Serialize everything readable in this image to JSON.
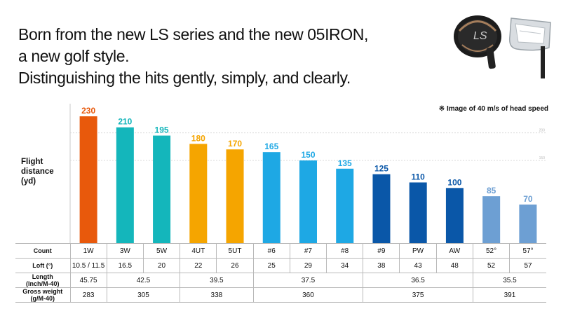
{
  "headline": {
    "lines": [
      "Born from the new LS series and the new 05IRON,",
      "a new golf style.",
      "Distinguishing the hits gently, simply, and clearly."
    ]
  },
  "note": "※ Image of 40 m/s of head speed",
  "product_icons": [
    "driver-head-icon",
    "iron-head-icon"
  ],
  "chart_data": {
    "type": "bar",
    "ylabel": [
      "Flight",
      "distance",
      "(yd)"
    ],
    "categories": [
      "1W",
      "3W",
      "5W",
      "4UT",
      "5UT",
      "#6",
      "#7",
      "#8",
      "#9",
      "PW",
      "AW",
      "52°",
      "57°"
    ],
    "values": [
      230,
      210,
      195,
      180,
      170,
      165,
      150,
      135,
      125,
      110,
      100,
      85,
      70
    ],
    "colors": [
      "#e8590c",
      "#14b6bb",
      "#14b6bb",
      "#f5a500",
      "#f5a500",
      "#1ea8e4",
      "#1ea8e4",
      "#1ea8e4",
      "#0a57a8",
      "#0a57a8",
      "#0a57a8",
      "#6d9fd3",
      "#6d9fd3"
    ],
    "gridlines": [
      200,
      150
    ],
    "gridline_labels": [
      "200",
      "150"
    ],
    "ylim": [
      0,
      250
    ]
  },
  "table": {
    "rows": [
      {
        "label": "Count",
        "cells": [
          {
            "text": "1W",
            "span": 1
          },
          {
            "text": "3W",
            "span": 1
          },
          {
            "text": "5W",
            "span": 1
          },
          {
            "text": "4UT",
            "span": 1
          },
          {
            "text": "5UT",
            "span": 1
          },
          {
            "text": "#6",
            "span": 1
          },
          {
            "text": "#7",
            "span": 1
          },
          {
            "text": "#8",
            "span": 1
          },
          {
            "text": "#9",
            "span": 1
          },
          {
            "text": "PW",
            "span": 1
          },
          {
            "text": "AW",
            "span": 1
          },
          {
            "text": "52°",
            "span": 1
          },
          {
            "text": "57°",
            "span": 1
          }
        ]
      },
      {
        "label": "Loft (°)",
        "cells": [
          {
            "text": "10.5 / 11.5",
            "span": 1
          },
          {
            "text": "16.5",
            "span": 1
          },
          {
            "text": "20",
            "span": 1
          },
          {
            "text": "22",
            "span": 1
          },
          {
            "text": "26",
            "span": 1
          },
          {
            "text": "25",
            "span": 1
          },
          {
            "text": "29",
            "span": 1
          },
          {
            "text": "34",
            "span": 1
          },
          {
            "text": "38",
            "span": 1
          },
          {
            "text": "43",
            "span": 1
          },
          {
            "text": "48",
            "span": 1
          },
          {
            "text": "52",
            "span": 1
          },
          {
            "text": "57",
            "span": 1
          }
        ]
      },
      {
        "label": "Length\n(Inch/M-40)",
        "cells": [
          {
            "text": "45.75",
            "span": 1
          },
          {
            "text": "42.5",
            "span": 2
          },
          {
            "text": "39.5",
            "span": 2
          },
          {
            "text": "37.5",
            "span": 3
          },
          {
            "text": "36.5",
            "span": 3
          },
          {
            "text": "35.5",
            "span": 2
          }
        ]
      },
      {
        "label": "Gross weight\n(g/M-40)",
        "cells": [
          {
            "text": "283",
            "span": 1
          },
          {
            "text": "305",
            "span": 2
          },
          {
            "text": "338",
            "span": 2
          },
          {
            "text": "360",
            "span": 3
          },
          {
            "text": "375",
            "span": 3
          },
          {
            "text": "391",
            "span": 2
          }
        ]
      }
    ]
  }
}
